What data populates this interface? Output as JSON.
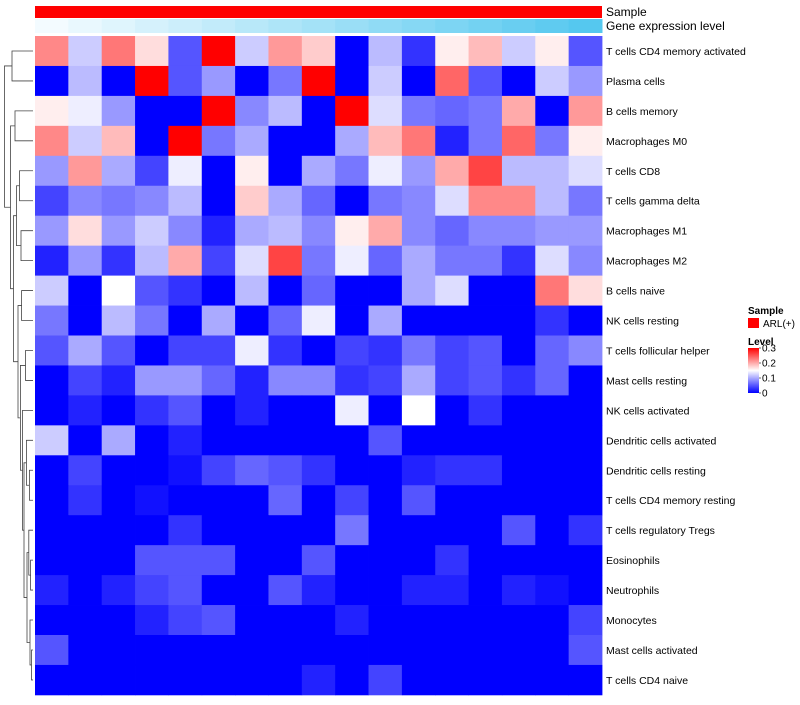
{
  "chart_data": {
    "type": "heatmap",
    "title": "",
    "annotations": {
      "top_bars": [
        {
          "label": "Sample",
          "style": "solid",
          "color": "#ff0000"
        },
        {
          "label": "Gene expression level",
          "style": "gradient",
          "from_color": "#f3fbff",
          "to_color": "#55c8ef"
        }
      ]
    },
    "rows": [
      "T cells CD4 memory activated",
      "Plasma cells",
      "B cells memory",
      "Macrophages M0",
      "T cells CD8",
      "T cells gamma delta",
      "Macrophages M1",
      "Macrophages M2",
      "B cells naive",
      "NK cells resting",
      "T cells follicular helper",
      "Mast cells resting",
      "NK cells activated",
      "Dendritic cells activated",
      "Dendritic cells resting",
      "T cells CD4 memory resting",
      "T cells regulatory  Tregs",
      "Eosinophils",
      "Neutrophils",
      "Monocytes",
      "Mast cells activated",
      "T cells CD4 naive"
    ],
    "n_columns": 17,
    "values": [
      [
        0.22,
        0.12,
        0.23,
        0.17,
        0.05,
        0.3,
        0.12,
        0.21,
        0.18,
        0.0,
        0.11,
        0.03,
        0.16,
        0.19,
        0.12,
        0.16,
        0.05
      ],
      [
        0.0,
        0.11,
        0.0,
        0.3,
        0.05,
        0.09,
        0.0,
        0.07,
        0.3,
        0.0,
        0.12,
        0.0,
        0.24,
        0.05,
        0.0,
        0.12,
        0.09
      ],
      [
        0.16,
        0.14,
        0.09,
        0.0,
        0.0,
        0.3,
        0.08,
        0.11,
        0.0,
        0.3,
        0.13,
        0.07,
        0.06,
        0.07,
        0.2,
        0.0,
        0.21
      ],
      [
        0.22,
        0.12,
        0.19,
        0.0,
        0.3,
        0.07,
        0.1,
        0.0,
        0.0,
        0.1,
        0.19,
        0.23,
        0.02,
        0.07,
        0.24,
        0.07,
        0.16
      ],
      [
        0.09,
        0.21,
        0.1,
        0.04,
        0.14,
        0.0,
        0.16,
        0.0,
        0.1,
        0.07,
        0.14,
        0.09,
        0.2,
        0.26,
        0.11,
        0.11,
        0.13
      ],
      [
        0.04,
        0.08,
        0.07,
        0.08,
        0.11,
        0.0,
        0.18,
        0.1,
        0.06,
        0.0,
        0.07,
        0.08,
        0.13,
        0.22,
        0.22,
        0.11,
        0.07
      ],
      [
        0.09,
        0.17,
        0.09,
        0.12,
        0.08,
        0.02,
        0.1,
        0.11,
        0.08,
        0.16,
        0.2,
        0.08,
        0.06,
        0.08,
        0.08,
        0.09,
        0.09
      ],
      [
        0.02,
        0.09,
        0.03,
        0.11,
        0.2,
        0.04,
        0.13,
        0.26,
        0.07,
        0.14,
        0.06,
        0.1,
        0.07,
        0.07,
        0.03,
        0.13,
        0.08
      ],
      [
        0.12,
        0.0,
        0.15,
        0.05,
        0.03,
        0.0,
        0.11,
        0.0,
        0.06,
        0.0,
        0.0,
        0.1,
        0.13,
        0.0,
        0.0,
        0.23,
        0.17
      ],
      [
        0.07,
        0.0,
        0.11,
        0.07,
        0.0,
        0.1,
        0.0,
        0.06,
        0.14,
        0.0,
        0.1,
        0.0,
        0.0,
        0.0,
        0.0,
        0.03,
        0.0
      ],
      [
        0.05,
        0.1,
        0.05,
        0.0,
        0.04,
        0.04,
        0.14,
        0.03,
        0.0,
        0.04,
        0.03,
        0.07,
        0.04,
        0.05,
        0.0,
        0.06,
        0.08
      ],
      [
        0.0,
        0.04,
        0.02,
        0.09,
        0.09,
        0.06,
        0.02,
        0.08,
        0.08,
        0.03,
        0.04,
        0.1,
        0.04,
        0.05,
        0.03,
        0.06,
        0.0
      ],
      [
        0.0,
        0.02,
        0.0,
        0.03,
        0.05,
        0.0,
        0.02,
        0.0,
        0.0,
        0.14,
        0.0,
        0.15,
        0.0,
        0.03,
        0.0,
        0.0,
        0.0
      ],
      [
        0.12,
        0.0,
        0.1,
        0.0,
        0.02,
        0.0,
        0.0,
        0.0,
        0.0,
        0.0,
        0.05,
        0.0,
        0.0,
        0.0,
        0.0,
        0.0,
        0.0
      ],
      [
        0.0,
        0.04,
        0.0,
        0.0,
        0.01,
        0.04,
        0.06,
        0.05,
        0.03,
        0.0,
        0.0,
        0.02,
        0.03,
        0.03,
        0.0,
        0.0,
        0.0
      ],
      [
        0.0,
        0.03,
        0.0,
        0.01,
        0.0,
        0.0,
        0.0,
        0.06,
        0.0,
        0.04,
        0.0,
        0.05,
        0.0,
        0.0,
        0.0,
        0.0,
        0.0
      ],
      [
        0.0,
        0.0,
        0.0,
        0.0,
        0.03,
        0.0,
        0.0,
        0.0,
        0.0,
        0.07,
        0.0,
        0.0,
        0.0,
        0.0,
        0.05,
        0.0,
        0.03
      ],
      [
        0.0,
        0.0,
        0.0,
        0.05,
        0.05,
        0.05,
        0.0,
        0.0,
        0.05,
        0.0,
        0.0,
        0.0,
        0.03,
        0.0,
        0.0,
        0.0,
        0.0
      ],
      [
        0.02,
        0.0,
        0.02,
        0.04,
        0.05,
        0.0,
        0.0,
        0.05,
        0.02,
        0.0,
        0.0,
        0.02,
        0.02,
        0.0,
        0.02,
        0.01,
        0.0
      ],
      [
        0.0,
        0.0,
        0.0,
        0.02,
        0.04,
        0.05,
        0.0,
        0.0,
        0.0,
        0.02,
        0.0,
        0.0,
        0.0,
        0.0,
        0.0,
        0.0,
        0.04
      ],
      [
        0.05,
        0.0,
        0.0,
        0.0,
        0.0,
        0.0,
        0.0,
        0.0,
        0.0,
        0.0,
        0.0,
        0.0,
        0.0,
        0.0,
        0.0,
        0.0,
        0.05
      ],
      [
        0.0,
        0.0,
        0.0,
        0.0,
        0.0,
        0.0,
        0.0,
        0.0,
        0.02,
        0.0,
        0.04,
        0.0,
        0.0,
        0.0,
        0.0,
        0.0,
        0.0
      ]
    ],
    "color_scale": {
      "min": 0,
      "mid": 0.15,
      "max": 0.3,
      "low_color": "#0000ff",
      "mid_color": "#ffffff",
      "high_color": "#ff0000"
    },
    "legend": {
      "placement": "right",
      "sample": {
        "title": "Sample",
        "items": [
          {
            "label": "ARL(+)",
            "color": "#ff0000"
          }
        ]
      },
      "level": {
        "title": "Level",
        "ticks": [
          {
            "value": 0.3,
            "label": "0.3"
          },
          {
            "value": 0.2,
            "label": "0.2"
          },
          {
            "value": 0.1,
            "label": "0.1"
          },
          {
            "value": 0,
            "label": "0"
          }
        ]
      }
    },
    "row_dendrogram": true
  }
}
